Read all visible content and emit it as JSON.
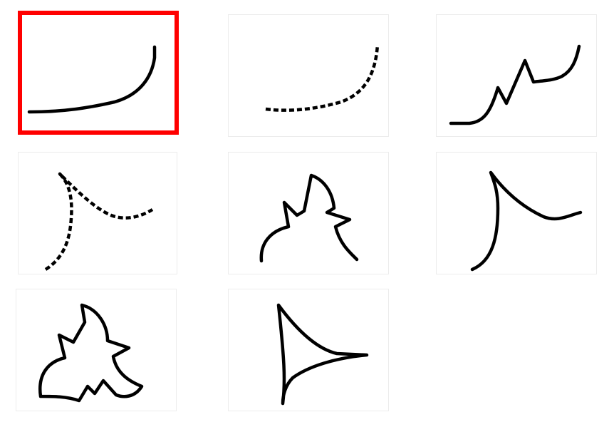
{
  "grid": {
    "selected_index": 0,
    "tiles": [
      {
        "name": "tile-1",
        "drawing": "smooth-curve-up-right",
        "stroke_style": "solid",
        "selected": true
      },
      {
        "name": "tile-2",
        "drawing": "dashed-curve-up-right",
        "stroke_style": "dashed",
        "selected": false
      },
      {
        "name": "tile-3",
        "drawing": "zigzag-rising-curve",
        "stroke_style": "solid",
        "selected": false
      },
      {
        "name": "tile-4",
        "drawing": "dashed-cusp-curve",
        "stroke_style": "dashed",
        "selected": false
      },
      {
        "name": "tile-5",
        "drawing": "jagged-open-shape",
        "stroke_style": "solid",
        "selected": false
      },
      {
        "name": "tile-6",
        "drawing": "cusp-curve",
        "stroke_style": "solid",
        "selected": false
      },
      {
        "name": "tile-7",
        "drawing": "jagged-closed-shape",
        "stroke_style": "solid",
        "selected": false
      },
      {
        "name": "tile-8",
        "drawing": "curved-triangle",
        "stroke_style": "solid",
        "selected": false
      }
    ]
  },
  "colors": {
    "selection_border": "#ff0000",
    "tile_border": "#ececec",
    "stroke": "#000000",
    "background": "#ffffff"
  }
}
